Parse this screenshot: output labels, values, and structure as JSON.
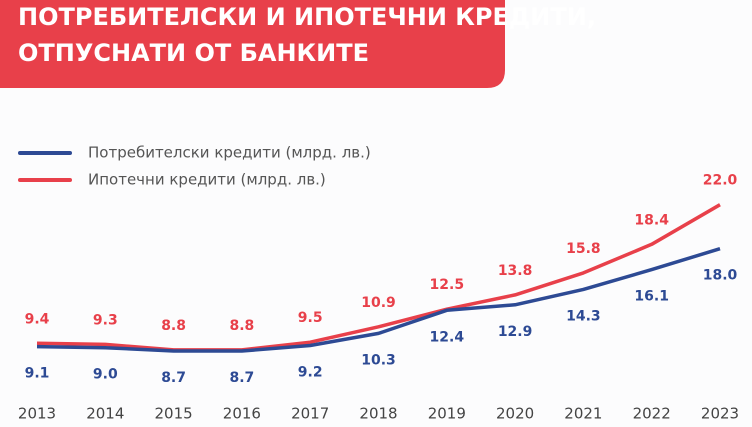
{
  "chart_data": {
    "type": "line",
    "title": [
      "ПОТРЕБИТЕЛСКИ И ИПОТЕЧНИ КРЕДИТИ,",
      "ОТПУСНАТИ ОТ БАНКИТЕ"
    ],
    "categories": [
      "2013",
      "2014",
      "2015",
      "2016",
      "2017",
      "2018",
      "2019",
      "2020",
      "2021",
      "2022",
      "2023"
    ],
    "series": [
      {
        "name": "Потребителски кредити (млрд. лв.)",
        "color": "#2d4a94",
        "values": [
          9.1,
          9.0,
          8.7,
          8.7,
          9.2,
          10.3,
          12.4,
          12.9,
          14.3,
          16.1,
          18.0
        ],
        "value_labels": [
          "9.1",
          "9.0",
          "8.7",
          "8.7",
          "9.2",
          "10.3",
          "12.4",
          "12.9",
          "14.3",
          "16.1",
          "18.0"
        ]
      },
      {
        "name": "Ипотечни кредити (млрд. лв.)",
        "color": "#e8404a",
        "values": [
          9.4,
          9.3,
          8.8,
          8.8,
          9.5,
          10.9,
          12.5,
          13.8,
          15.8,
          18.4,
          22.0
        ],
        "value_labels": [
          "9.4",
          "9.3",
          "8.8",
          "8.8",
          "9.5",
          "10.9",
          "12.5",
          "13.8",
          "15.8",
          "18.4",
          "22.0"
        ]
      }
    ]
  }
}
